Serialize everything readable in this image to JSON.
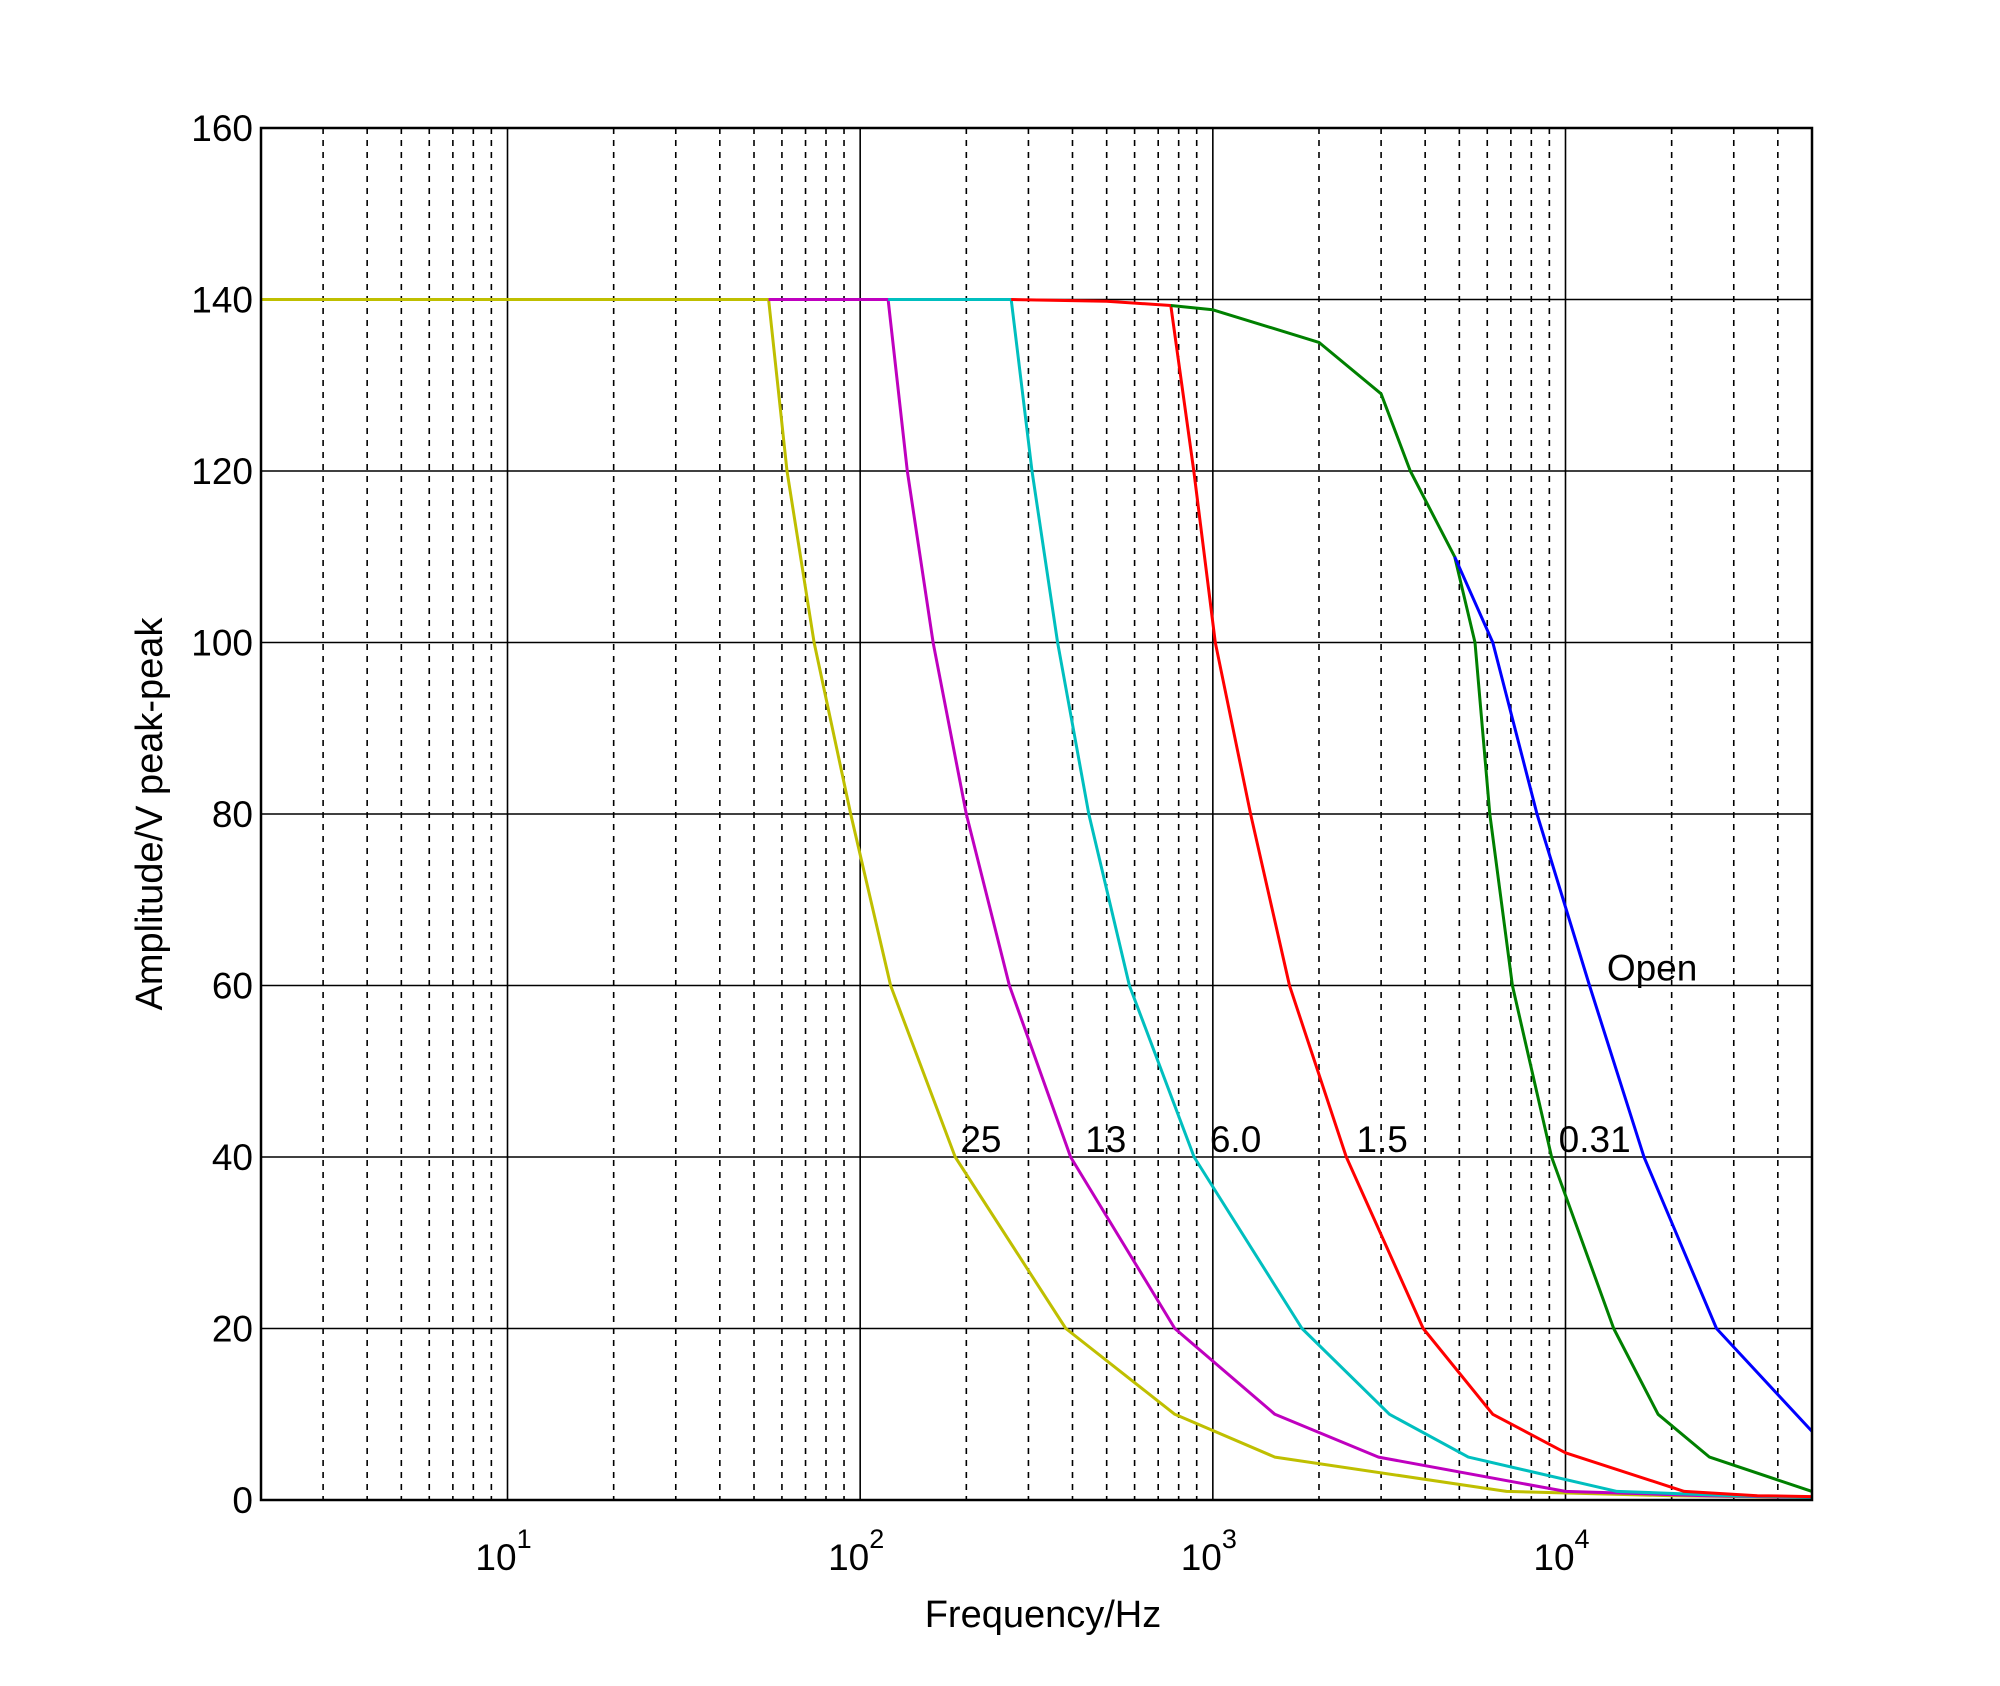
{
  "chart_data": {
    "type": "line",
    "title": "",
    "xlabel": "Frequency/Hz",
    "ylabel": "Amplitude/V peak-peak",
    "xscale": "log",
    "xlim": [
      2,
      50000
    ],
    "ylim": [
      0,
      160
    ],
    "yticks": [
      0,
      20,
      40,
      60,
      80,
      100,
      120,
      140,
      160
    ],
    "xticks": [
      {
        "value": 10,
        "base": "10",
        "exp": "1"
      },
      {
        "value": 100,
        "base": "10",
        "exp": "2"
      },
      {
        "value": 1000,
        "base": "10",
        "exp": "3"
      },
      {
        "value": 10000,
        "base": "10",
        "exp": "4"
      }
    ],
    "grid": true,
    "series": [
      {
        "name": "25",
        "color": "#bfbf00",
        "label_at": [
          220,
          42
        ],
        "points": [
          [
            2,
            140
          ],
          [
            55,
            140
          ],
          [
            62,
            120
          ],
          [
            74,
            100
          ],
          [
            94,
            80
          ],
          [
            122,
            60
          ],
          [
            186,
            40
          ],
          [
            383,
            20
          ],
          [
            780,
            10
          ],
          [
            1500,
            5
          ],
          [
            6800,
            1
          ],
          [
            20000,
            0.5
          ],
          [
            50000,
            0.3
          ]
        ]
      },
      {
        "name": "13",
        "color": "#bf00bf",
        "label_at": [
          497,
          42
        ],
        "points": [
          [
            55,
            140
          ],
          [
            120,
            140
          ],
          [
            136,
            120
          ],
          [
            161,
            100
          ],
          [
            200,
            80
          ],
          [
            265,
            60
          ],
          [
            395,
            40
          ],
          [
            780,
            20
          ],
          [
            1500,
            10
          ],
          [
            2950,
            5
          ],
          [
            10000,
            1
          ],
          [
            25000,
            0.5
          ],
          [
            50000,
            0.3
          ]
        ]
      },
      {
        "name": "6.0",
        "color": "#00bfbf",
        "label_at": [
          1160,
          42
        ],
        "points": [
          [
            120,
            140
          ],
          [
            268,
            140
          ],
          [
            307,
            120
          ],
          [
            363,
            100
          ],
          [
            445,
            80
          ],
          [
            580,
            60
          ],
          [
            885,
            40
          ],
          [
            1790,
            20
          ],
          [
            3170,
            10
          ],
          [
            5300,
            5
          ],
          [
            14000,
            1
          ],
          [
            30000,
            0.5
          ],
          [
            50000,
            0.3
          ]
        ]
      },
      {
        "name": "1.5",
        "color": "#ff0000",
        "label_at": [
          3020,
          42
        ],
        "points": [
          [
            268,
            140
          ],
          [
            500,
            139.8
          ],
          [
            760,
            139.3
          ],
          [
            883,
            120
          ],
          [
            1016,
            100
          ],
          [
            1280,
            80
          ],
          [
            1650,
            60
          ],
          [
            2390,
            40
          ],
          [
            3950,
            20
          ],
          [
            6220,
            10
          ],
          [
            10000,
            5.5
          ],
          [
            21700,
            1
          ],
          [
            35000,
            0.5
          ],
          [
            50000,
            0.4
          ]
        ]
      },
      {
        "name": "0.31",
        "color": "#008000",
        "label_at": [
          12100,
          42
        ],
        "points": [
          [
            760,
            139.3
          ],
          [
            1000,
            138.8
          ],
          [
            2000,
            135
          ],
          [
            3000,
            129
          ],
          [
            3630,
            120
          ],
          [
            4850,
            110
          ],
          [
            5540,
            100
          ],
          [
            6100,
            80
          ],
          [
            7070,
            60
          ],
          [
            9130,
            40
          ],
          [
            13700,
            20
          ],
          [
            18300,
            10
          ],
          [
            25600,
            5
          ],
          [
            50000,
            1
          ]
        ]
      },
      {
        "name": "Open",
        "color": "#0000ff",
        "label_at": [
          17600,
          62
        ],
        "points": [
          [
            4850,
            110
          ],
          [
            6220,
            100
          ],
          [
            8300,
            80
          ],
          [
            11700,
            60
          ],
          [
            16700,
            40
          ],
          [
            26800,
            20
          ],
          [
            50000,
            8
          ]
        ]
      }
    ]
  }
}
